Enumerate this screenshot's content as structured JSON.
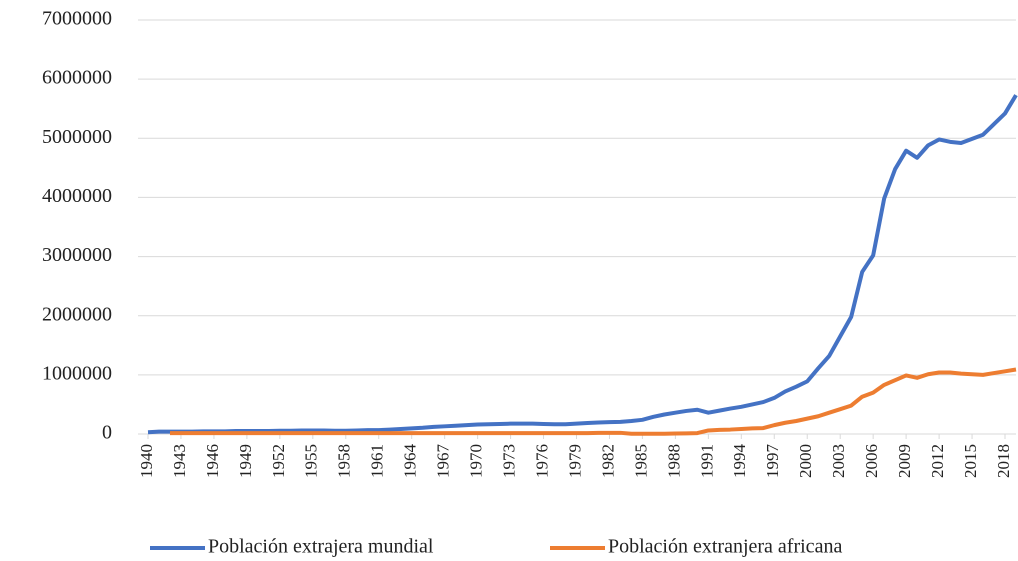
{
  "chart_data": {
    "type": "line",
    "x": [
      1940,
      1941,
      1942,
      1943,
      1944,
      1945,
      1946,
      1947,
      1948,
      1949,
      1950,
      1951,
      1952,
      1953,
      1954,
      1955,
      1956,
      1957,
      1958,
      1959,
      1960,
      1961,
      1962,
      1963,
      1964,
      1965,
      1966,
      1967,
      1968,
      1969,
      1970,
      1971,
      1972,
      1973,
      1974,
      1975,
      1976,
      1977,
      1978,
      1979,
      1980,
      1981,
      1982,
      1983,
      1984,
      1985,
      1986,
      1987,
      1988,
      1989,
      1990,
      1991,
      1992,
      1993,
      1994,
      1995,
      1996,
      1997,
      1998,
      1999,
      2000,
      2001,
      2002,
      2003,
      2004,
      2005,
      2006,
      2007,
      2008,
      2009,
      2010,
      2011,
      2012,
      2013,
      2014,
      2015,
      2016,
      2017,
      2018,
      2019
    ],
    "series": [
      {
        "name": "Población extrajera mundial",
        "color": "#4472c4",
        "values": [
          30000,
          40000,
          40000,
          40000,
          40000,
          45000,
          45000,
          45000,
          50000,
          50000,
          50000,
          50000,
          55000,
          55000,
          60000,
          60000,
          60000,
          55000,
          55000,
          60000,
          65000,
          65000,
          75000,
          85000,
          95000,
          105000,
          120000,
          130000,
          140000,
          150000,
          160000,
          165000,
          170000,
          175000,
          175000,
          175000,
          170000,
          165000,
          165000,
          175000,
          185000,
          195000,
          200000,
          205000,
          220000,
          240000,
          290000,
          330000,
          360000,
          390000,
          410000,
          360000,
          395000,
          430000,
          460000,
          500000,
          540000,
          610000,
          720000,
          800000,
          890000,
          1110000,
          1320000,
          1650000,
          1980000,
          2740000,
          3020000,
          3980000,
          4480000,
          4790000,
          4670000,
          4880000,
          4980000,
          4940000,
          4920000,
          4990000,
          5060000,
          5240000,
          5420000,
          5730000
        ]
      },
      {
        "name": "Población extranjera africana",
        "color": "#ed7d31",
        "values": [
          null,
          null,
          15000,
          15000,
          15000,
          15000,
          15000,
          15000,
          15000,
          15000,
          15000,
          15000,
          15000,
          15000,
          15000,
          15000,
          15000,
          15000,
          15000,
          15000,
          15000,
          15000,
          15000,
          15000,
          15000,
          15000,
          15000,
          15000,
          15000,
          15000,
          15000,
          15000,
          15000,
          15000,
          15000,
          15000,
          15000,
          15000,
          15000,
          15000,
          15000,
          20000,
          20000,
          20000,
          5000,
          5000,
          5000,
          5000,
          8000,
          10000,
          15000,
          60000,
          70000,
          75000,
          85000,
          95000,
          100000,
          150000,
          190000,
          220000,
          260000,
          300000,
          360000,
          420000,
          480000,
          630000,
          700000,
          830000,
          910000,
          990000,
          950000,
          1010000,
          1040000,
          1040000,
          1020000,
          1010000,
          1000000,
          1030000,
          1060000,
          1090000
        ]
      }
    ],
    "xlim": [
      1940,
      2019
    ],
    "xticks": [
      1940,
      1943,
      1946,
      1949,
      1952,
      1955,
      1958,
      1961,
      1964,
      1967,
      1970,
      1973,
      1976,
      1979,
      1982,
      1985,
      1988,
      1991,
      1994,
      1997,
      2000,
      2003,
      2006,
      2009,
      2012,
      2015,
      2018
    ],
    "ylim": [
      0,
      7000000
    ],
    "yticks": [
      0,
      1000000,
      2000000,
      3000000,
      4000000,
      5000000,
      6000000,
      7000000
    ],
    "grid": true
  }
}
